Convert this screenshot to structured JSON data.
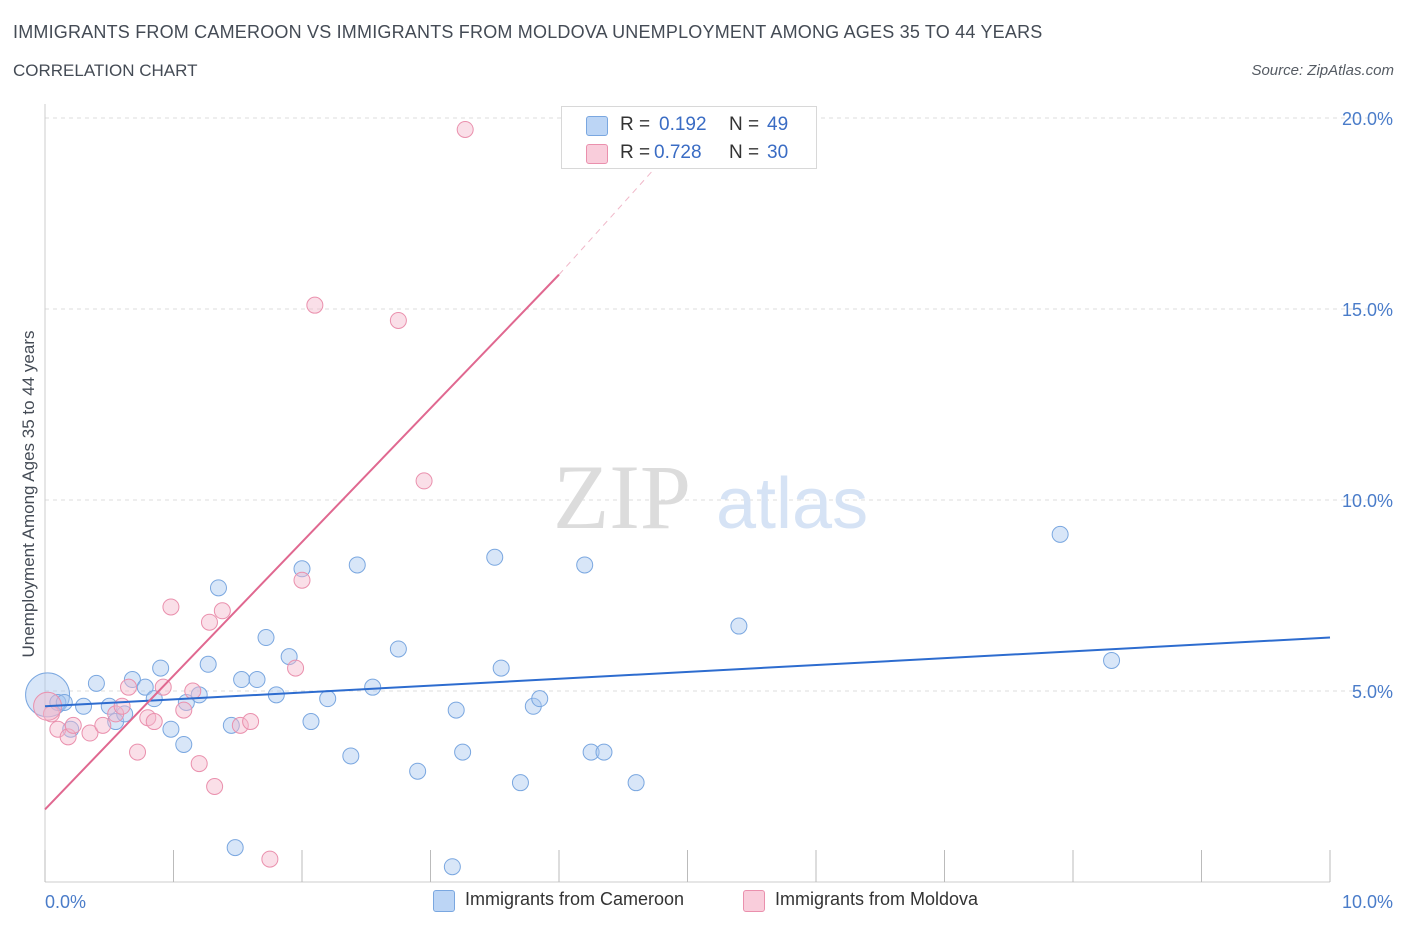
{
  "header": {
    "title": "IMMIGRANTS FROM CAMEROON VS IMMIGRANTS FROM MOLDOVA UNEMPLOYMENT AMONG AGES 35 TO 44 YEARS",
    "subtitle": "CORRELATION CHART",
    "source": "Source: ZipAtlas.com"
  },
  "watermark": {
    "zip": "ZIP",
    "atlas": "atlas"
  },
  "legend": {
    "r_label": "R =",
    "n_label": "N =",
    "series": [
      {
        "r": "0.192",
        "n": "49",
        "color": "#a9c8f0"
      },
      {
        "r": "0.728",
        "n": "30",
        "color": "#f5b8cc"
      }
    ]
  },
  "bottom_legend": [
    {
      "label": "Immigrants from Cameroon",
      "color": "#a9c8f0"
    },
    {
      "label": "Immigrants from Moldova",
      "color": "#f5b8cc"
    }
  ],
  "colors": {
    "cameroon_fill": "rgba(169,200,240,0.45)",
    "cameroon_stroke": "#7aa7e0",
    "cameroon_line": "#2d6ccf",
    "moldova_fill": "rgba(245,184,204,0.45)",
    "moldova_stroke": "#ea90ad",
    "moldova_line": "#e06890",
    "tick_text": "#4a7cc9",
    "grid": "#dddddd"
  },
  "chart_data": {
    "type": "scatter",
    "title": "IMMIGRANTS FROM CAMEROON VS IMMIGRANTS FROM MOLDOVA UNEMPLOYMENT AMONG AGES 35 TO 44 YEARS",
    "xlabel": "",
    "ylabel": "Unemployment Among Ages 35 to 44 years",
    "xlim": [
      0,
      10
    ],
    "ylim": [
      0,
      20
    ],
    "x_tick_labels": [
      {
        "value": 0,
        "label": "0.0%"
      },
      {
        "value": 10,
        "label": "10.0%"
      }
    ],
    "y_tick_labels": [
      {
        "value": 5,
        "label": "5.0%"
      },
      {
        "value": 10,
        "label": "10.0%"
      },
      {
        "value": 15,
        "label": "15.0%"
      },
      {
        "value": 20,
        "label": "20.0%"
      }
    ],
    "grid": true,
    "legend_position": "top-center",
    "series": [
      {
        "name": "Immigrants from Cameroon",
        "points": [
          [
            0.02,
            4.9
          ],
          [
            0.1,
            4.7
          ],
          [
            0.15,
            4.7
          ],
          [
            0.2,
            4.0
          ],
          [
            0.3,
            4.6
          ],
          [
            0.4,
            5.2
          ],
          [
            0.5,
            4.6
          ],
          [
            0.55,
            4.2
          ],
          [
            0.62,
            4.4
          ],
          [
            0.68,
            5.3
          ],
          [
            0.78,
            5.1
          ],
          [
            0.85,
            4.8
          ],
          [
            0.9,
            5.6
          ],
          [
            0.98,
            4.0
          ],
          [
            1.08,
            3.6
          ],
          [
            1.1,
            4.7
          ],
          [
            1.2,
            4.9
          ],
          [
            1.27,
            5.7
          ],
          [
            1.35,
            7.7
          ],
          [
            1.45,
            4.1
          ],
          [
            1.48,
            0.9
          ],
          [
            1.53,
            5.3
          ],
          [
            1.65,
            5.3
          ],
          [
            1.72,
            6.4
          ],
          [
            1.8,
            4.9
          ],
          [
            1.9,
            5.9
          ],
          [
            2.0,
            8.2
          ],
          [
            2.07,
            4.2
          ],
          [
            2.2,
            4.8
          ],
          [
            2.38,
            3.3
          ],
          [
            2.43,
            8.3
          ],
          [
            2.55,
            5.1
          ],
          [
            2.75,
            6.1
          ],
          [
            2.9,
            2.9
          ],
          [
            3.17,
            0.4
          ],
          [
            3.2,
            4.5
          ],
          [
            3.25,
            3.4
          ],
          [
            3.5,
            8.5
          ],
          [
            3.55,
            5.6
          ],
          [
            3.7,
            2.6
          ],
          [
            3.8,
            4.6
          ],
          [
            3.85,
            4.8
          ],
          [
            4.2,
            8.3
          ],
          [
            4.25,
            3.4
          ],
          [
            4.35,
            3.4
          ],
          [
            4.6,
            2.6
          ],
          [
            5.4,
            6.7
          ],
          [
            7.9,
            9.1
          ],
          [
            8.3,
            5.8
          ]
        ],
        "trend": {
          "x": [
            0,
            10
          ],
          "y": [
            4.6,
            6.4
          ]
        }
      },
      {
        "name": "Immigrants from Moldova",
        "points": [
          [
            0.05,
            4.4
          ],
          [
            0.1,
            4.0
          ],
          [
            0.18,
            3.8
          ],
          [
            0.22,
            4.1
          ],
          [
            0.35,
            3.9
          ],
          [
            0.45,
            4.1
          ],
          [
            0.55,
            4.4
          ],
          [
            0.6,
            4.6
          ],
          [
            0.65,
            5.1
          ],
          [
            0.72,
            3.4
          ],
          [
            0.8,
            4.3
          ],
          [
            0.85,
            4.2
          ],
          [
            0.92,
            5.1
          ],
          [
            0.98,
            7.2
          ],
          [
            1.08,
            4.5
          ],
          [
            1.15,
            5.0
          ],
          [
            1.2,
            3.1
          ],
          [
            1.28,
            6.8
          ],
          [
            1.32,
            2.5
          ],
          [
            1.38,
            7.1
          ],
          [
            1.52,
            4.1
          ],
          [
            1.6,
            4.2
          ],
          [
            1.75,
            0.6
          ],
          [
            1.95,
            5.6
          ],
          [
            2.0,
            7.9
          ],
          [
            2.1,
            15.1
          ],
          [
            2.75,
            14.7
          ],
          [
            2.95,
            10.5
          ],
          [
            3.27,
            19.7
          ],
          [
            0.02,
            4.6
          ]
        ],
        "trend": {
          "x": [
            0,
            4.0
          ],
          "y": [
            1.9,
            15.9
          ]
        },
        "trend_dashed": {
          "x": [
            4.0,
            4.75
          ],
          "y": [
            15.9,
            18.7
          ]
        }
      }
    ]
  }
}
